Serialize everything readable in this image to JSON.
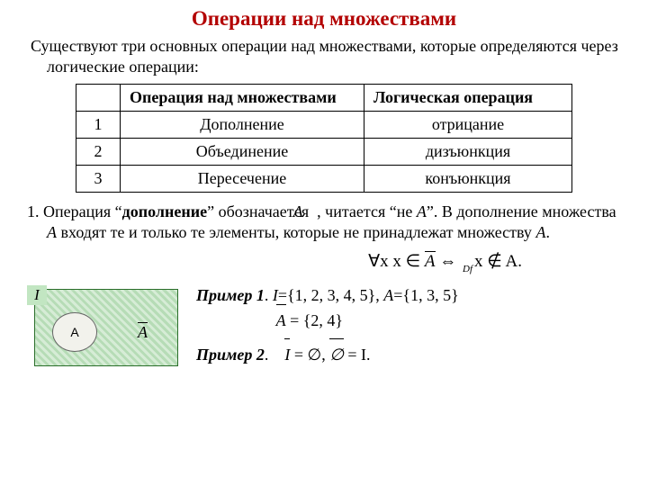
{
  "title": {
    "text": "Операции над множествами",
    "color": "#b30000"
  },
  "intro": "Существуют три основных операции над множествами, которые определяются через логические операции:",
  "table": {
    "headers": {
      "blank": "",
      "op": "Операция над множествами",
      "logic": "Логическая операция"
    },
    "rows": [
      {
        "n": "1",
        "op": "Дополнение",
        "logic": "отрицание"
      },
      {
        "n": "2",
        "op": "Объединение",
        "logic": "дизъюнкция"
      },
      {
        "n": "3",
        "op": "Пересечение",
        "logic": "конъюнкция"
      }
    ]
  },
  "desc": {
    "prefix": "1. Операция “",
    "bold": "дополнение",
    "mid": "” обозначается ",
    "after_sym": ", читается “не ",
    "varA": "A",
    "tail1": "”. В дополнение множества ",
    "tail2": " входят те и только те элементы, которые не принадлежат множеству ",
    "period": "."
  },
  "formula": {
    "forall": "∀x x ∈ ",
    "iff": " ⇔ ",
    "notin": "x ∉ A.",
    "df": "Df"
  },
  "venn": {
    "I": "I",
    "A": "A",
    "Abar": "A"
  },
  "ex1": {
    "label": "Пример 1",
    "text_I": "I",
    "eq_I": "={1, 2, 3, 4, 5}, ",
    "text_A": "A",
    "eq_A": "={1, 3, 5}"
  },
  "ex1_result": {
    "lhs": "A",
    "rhs": " = {2, 4}"
  },
  "ex2": {
    "label": "Пример 2",
    "part1_lhs": "I",
    "eq": " = ",
    "empty": "∅",
    "comma": ",   ",
    "part2_rhs": " = I."
  }
}
